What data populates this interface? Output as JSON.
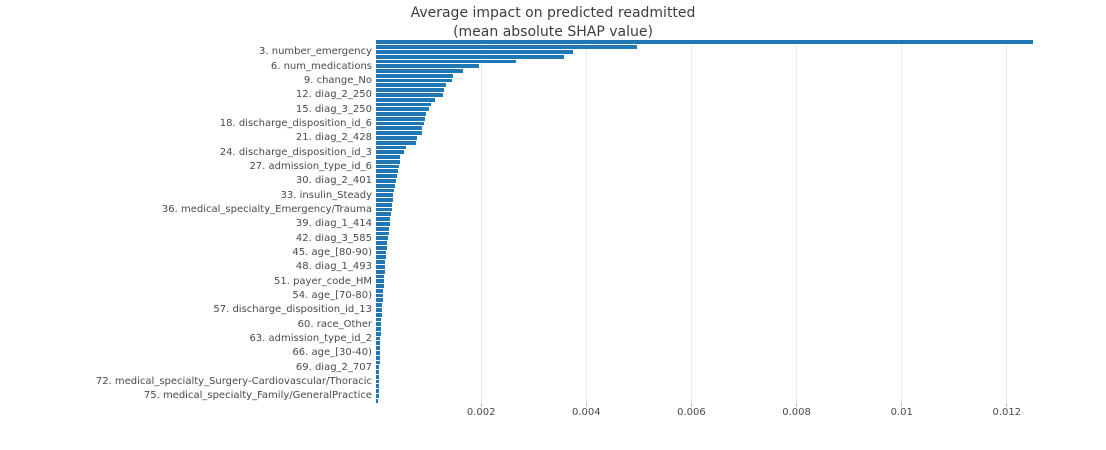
{
  "chart_data": {
    "type": "bar",
    "orientation": "horizontal",
    "title": "Average impact on predicted readmitted",
    "subtitle": "(mean absolute SHAP value)",
    "xlabel": "",
    "ylabel": "",
    "xlim": [
      0,
      0.013125
    ],
    "xticks": [
      0.002,
      0.004,
      0.006,
      0.008,
      0.01,
      0.012
    ],
    "xtick_labels": [
      "0.002",
      "0.004",
      "0.006",
      "0.008",
      "0.01",
      "0.012"
    ],
    "grid": true,
    "legend": false,
    "bar_color": "#1f77b4",
    "gridline_color": "#ebebeb",
    "bars": [
      {
        "rank": 1,
        "label": "",
        "value": 0.0125
      },
      {
        "rank": 2,
        "label": "",
        "value": 0.00497
      },
      {
        "rank": 3,
        "label": "3. number_emergency",
        "value": 0.00374
      },
      {
        "rank": 4,
        "label": "",
        "value": 0.00358
      },
      {
        "rank": 5,
        "label": "",
        "value": 0.00267
      },
      {
        "rank": 6,
        "label": "6. num_medications",
        "value": 0.00196
      },
      {
        "rank": 7,
        "label": "",
        "value": 0.00166
      },
      {
        "rank": 8,
        "label": "",
        "value": 0.00147
      },
      {
        "rank": 9,
        "label": "9. change_No",
        "value": 0.00144
      },
      {
        "rank": 10,
        "label": "",
        "value": 0.00134
      },
      {
        "rank": 11,
        "label": "",
        "value": 0.0013
      },
      {
        "rank": 12,
        "label": "12. diag_2_250",
        "value": 0.00127
      },
      {
        "rank": 13,
        "label": "",
        "value": 0.00112
      },
      {
        "rank": 14,
        "label": "",
        "value": 0.00105
      },
      {
        "rank": 15,
        "label": "15. diag_3_250",
        "value": 0.001
      },
      {
        "rank": 16,
        "label": "",
        "value": 0.00096
      },
      {
        "rank": 17,
        "label": "",
        "value": 0.00094
      },
      {
        "rank": 18,
        "label": "18. discharge_disposition_id_6",
        "value": 0.00091
      },
      {
        "rank": 19,
        "label": "",
        "value": 0.00088
      },
      {
        "rank": 20,
        "label": "",
        "value": 0.00087
      },
      {
        "rank": 21,
        "label": "21. diag_2_428",
        "value": 0.00078
      },
      {
        "rank": 22,
        "label": "",
        "value": 0.00076
      },
      {
        "rank": 23,
        "label": "",
        "value": 0.00057
      },
      {
        "rank": 24,
        "label": "24. discharge_disposition_id_3",
        "value": 0.00054
      },
      {
        "rank": 25,
        "label": "",
        "value": 0.00046
      },
      {
        "rank": 26,
        "label": "",
        "value": 0.00045
      },
      {
        "rank": 27,
        "label": "27. admission_type_id_6",
        "value": 0.00044
      },
      {
        "rank": 28,
        "label": "",
        "value": 0.00042
      },
      {
        "rank": 29,
        "label": "",
        "value": 0.0004
      },
      {
        "rank": 30,
        "label": "30. diag_2_401",
        "value": 0.00038
      },
      {
        "rank": 31,
        "label": "",
        "value": 0.00036
      },
      {
        "rank": 32,
        "label": "",
        "value": 0.00034
      },
      {
        "rank": 33,
        "label": "33. insulin_Steady",
        "value": 0.00033
      },
      {
        "rank": 34,
        "label": "",
        "value": 0.00032
      },
      {
        "rank": 35,
        "label": "",
        "value": 0.00031
      },
      {
        "rank": 36,
        "label": "36. medical_specialty_Emergency/Trauma",
        "value": 0.0003
      },
      {
        "rank": 37,
        "label": "",
        "value": 0.00029
      },
      {
        "rank": 38,
        "label": "",
        "value": 0.00027
      },
      {
        "rank": 39,
        "label": "39. diag_1_414",
        "value": 0.00026
      },
      {
        "rank": 40,
        "label": "",
        "value": 0.00025
      },
      {
        "rank": 41,
        "label": "",
        "value": 0.00024
      },
      {
        "rank": 42,
        "label": "42. diag_3_585",
        "value": 0.00023
      },
      {
        "rank": 43,
        "label": "",
        "value": 0.000215
      },
      {
        "rank": 44,
        "label": "",
        "value": 0.000205
      },
      {
        "rank": 45,
        "label": "45. age_[80-90)",
        "value": 0.000198
      },
      {
        "rank": 46,
        "label": "",
        "value": 0.00019
      },
      {
        "rank": 47,
        "label": "",
        "value": 0.00018
      },
      {
        "rank": 48,
        "label": "48. diag_1_493",
        "value": 0.000172
      },
      {
        "rank": 49,
        "label": "",
        "value": 0.000166
      },
      {
        "rank": 50,
        "label": "",
        "value": 0.00016
      },
      {
        "rank": 51,
        "label": "51. payer_code_HM",
        "value": 0.000152
      },
      {
        "rank": 52,
        "label": "",
        "value": 0.000147
      },
      {
        "rank": 53,
        "label": "",
        "value": 0.00014
      },
      {
        "rank": 54,
        "label": "54. age_[70-80)",
        "value": 0.000135
      },
      {
        "rank": 55,
        "label": "",
        "value": 0.000128
      },
      {
        "rank": 56,
        "label": "",
        "value": 0.00012
      },
      {
        "rank": 57,
        "label": "57. discharge_disposition_id_13",
        "value": 0.000115
      },
      {
        "rank": 58,
        "label": "",
        "value": 0.000108
      },
      {
        "rank": 59,
        "label": "",
        "value": 0.000101
      },
      {
        "rank": 60,
        "label": "60. race_Other",
        "value": 9.7e-05
      },
      {
        "rank": 61,
        "label": "",
        "value": 9.4e-05
      },
      {
        "rank": 62,
        "label": "",
        "value": 9e-05
      },
      {
        "rank": 63,
        "label": "63. admission_type_id_2",
        "value": 8.5e-05
      },
      {
        "rank": 64,
        "label": "",
        "value": 8.2e-05
      },
      {
        "rank": 65,
        "label": "",
        "value": 8e-05
      },
      {
        "rank": 66,
        "label": "66. age_[30-40)",
        "value": 7.8e-05
      },
      {
        "rank": 67,
        "label": "",
        "value": 7.2e-05
      },
      {
        "rank": 68,
        "label": "",
        "value": 7e-05
      },
      {
        "rank": 69,
        "label": "69. diag_2_707",
        "value": 6.5e-05
      },
      {
        "rank": 70,
        "label": "",
        "value": 6.2e-05
      },
      {
        "rank": 71,
        "label": "",
        "value": 6e-05
      },
      {
        "rank": 72,
        "label": "72. medical_specialty_Surgery-Cardiovascular/Thoracic",
        "value": 5.8e-05
      },
      {
        "rank": 73,
        "label": "",
        "value": 5.4e-05
      },
      {
        "rank": 74,
        "label": "",
        "value": 5.1e-05
      },
      {
        "rank": 75,
        "label": "75. medical_specialty_Family/GeneralPractice",
        "value": 4.8e-05
      },
      {
        "rank": 76,
        "label": "",
        "value": 4.4e-05
      }
    ]
  }
}
